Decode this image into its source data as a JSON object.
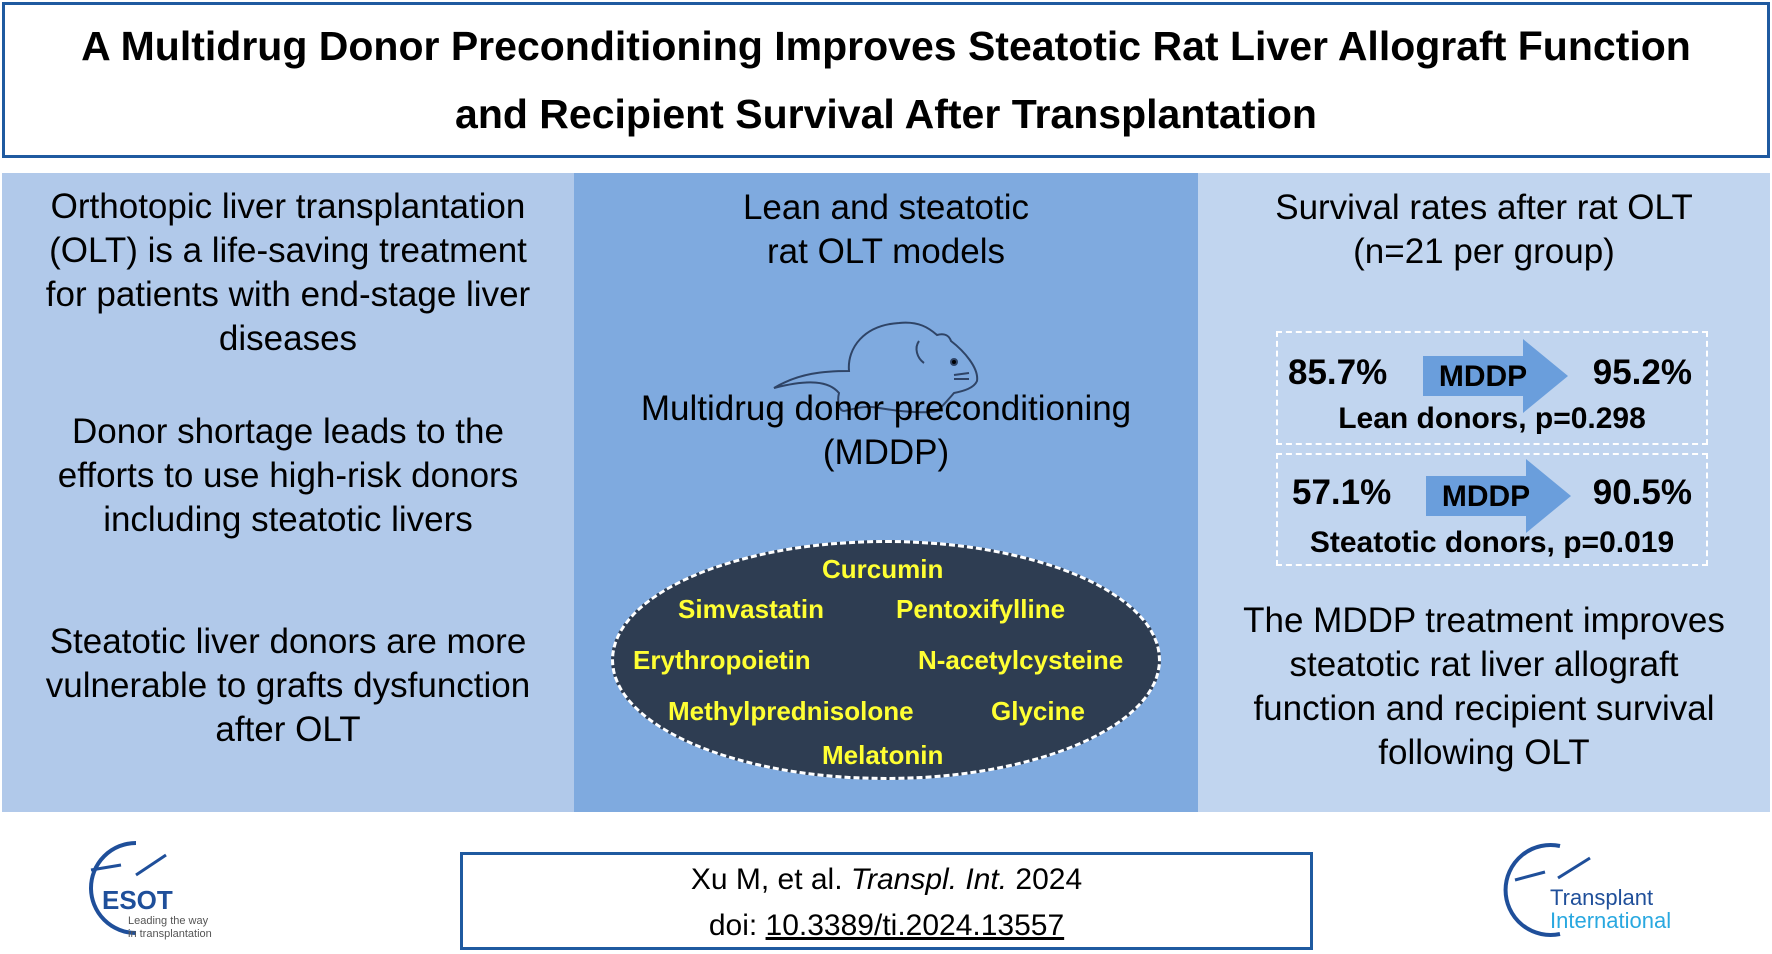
{
  "title": {
    "line1": "A Multidrug Donor Preconditioning Improves Steatotic Rat Liver Allograft Function",
    "line2": "and Recipient Survival After Transplantation"
  },
  "left": {
    "p1": [
      "Orthotopic liver transplantation",
      "(OLT) is a life-saving treatment",
      "for patients with end-stage liver",
      "diseases"
    ],
    "p2": [
      "Donor shortage leads to the",
      "efforts to use high-risk donors",
      "including steatotic livers"
    ],
    "p3": [
      "Steatotic liver donors are more",
      "vulnerable to grafts dysfunction",
      "after OLT"
    ]
  },
  "middle": {
    "heading": [
      "Lean and steatotic",
      "rat OLT models"
    ],
    "mddp": [
      "Multidrug donor preconditioning",
      "(MDDP)"
    ],
    "drugs": [
      "Curcumin",
      "Simvastatin",
      "Pentoxifylline",
      "Erythropoietin",
      "N-acetylcysteine",
      "Methylprednisolone",
      "Glycine",
      "Melatonin"
    ]
  },
  "right": {
    "heading": [
      "Survival rates after rat OLT",
      "(n=21 per group)"
    ],
    "lean": {
      "before": "85.7%",
      "arrow": "MDDP",
      "after": "95.2%",
      "caption": "Lean donors, p=0.298"
    },
    "steatotic": {
      "before": "57.1%",
      "arrow": "MDDP",
      "after": "90.5%",
      "caption": "Steatotic donors, p=0.019"
    },
    "conclusion": [
      "The MDDP treatment improves",
      "steatotic rat liver allograft",
      "function and recipient survival",
      "following OLT"
    ]
  },
  "citation": {
    "authors": "Xu M, et al. ",
    "journal": "Transpl. Int.",
    "year": " 2024",
    "doi_label": "doi: ",
    "doi": "10.3389/ti.2024.13557"
  },
  "logos": {
    "esot": "ESOT",
    "esot_tagline": [
      "Leading the way",
      "in transplantation"
    ],
    "ti": [
      "Transplant",
      "International"
    ]
  },
  "colors": {
    "border": "#1f5aa0",
    "left": "#b1c9ea",
    "middle": "#7faadf",
    "right": "#c1d5ef",
    "ellipse": "#2e3d52",
    "drug_text": "#ffff33",
    "arrow": "#6a9edc"
  }
}
